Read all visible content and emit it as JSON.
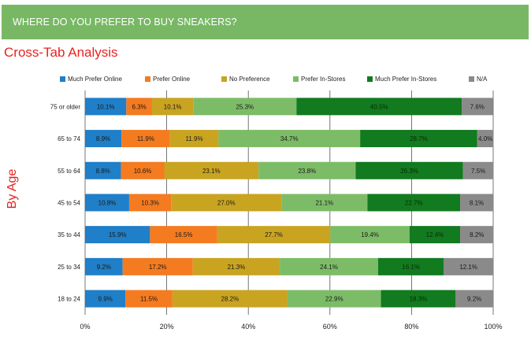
{
  "header": {
    "title": "WHERE DO YOU PREFER TO BUY SNEAKERS?"
  },
  "subtitle": "Cross-Tab Analysis",
  "axis_side_label": "By Age",
  "chart_data": {
    "type": "bar",
    "orientation": "horizontal",
    "stacked": "percent",
    "categories": [
      "75 or older",
      "65 to 74",
      "55 to 64",
      "45 to 54",
      "35 to 44",
      "25 to 34",
      "18 to 24"
    ],
    "series": [
      {
        "name": "Much Prefer Online",
        "color": "#1f7fc8",
        "values": [
          10.1,
          8.9,
          8.8,
          10.8,
          15.9,
          9.2,
          9.9
        ],
        "labels": [
          "10.1%",
          "8.9%",
          "8.8%",
          "10.8%",
          "15.9%",
          "9.2%",
          "9.9%"
        ]
      },
      {
        "name": "Prefer Online",
        "color": "#f47b20",
        "values": [
          6.3,
          11.9,
          10.6,
          10.3,
          16.5,
          17.2,
          11.5
        ],
        "labels": [
          "6.3%",
          "11.9%",
          "10.6%",
          "10.3%",
          "16.5%",
          "17.2%",
          "11.5%"
        ]
      },
      {
        "name": "No Preference",
        "color": "#c9a421",
        "values": [
          10.1,
          11.9,
          23.1,
          27.0,
          27.7,
          21.3,
          28.2
        ],
        "labels": [
          "10.1%",
          "11.9%",
          "23.1%",
          "27.0%",
          "27.7%",
          "21.3%",
          "28.2%"
        ]
      },
      {
        "name": "Prefer In-Stores",
        "color": "#7dbc67",
        "values": [
          25.3,
          34.7,
          23.8,
          21.1,
          19.4,
          24.1,
          22.9
        ],
        "labels": [
          "25.3%",
          "34.7%",
          "23.8%",
          "21.1%",
          "19.4%",
          "24.1%",
          "22.9%"
        ]
      },
      {
        "name": "Much Prefer In-Stores",
        "color": "#127a1f",
        "values": [
          40.5,
          28.7,
          26.3,
          22.7,
          12.4,
          16.1,
          18.3
        ],
        "labels": [
          "40.5%",
          "28.7%",
          "26.3%",
          "22.7%",
          "12.4%",
          "16.1%",
          "18.3%"
        ]
      },
      {
        "name": "N/A",
        "color": "#8a8a8a",
        "values": [
          7.6,
          4.0,
          7.5,
          8.1,
          8.2,
          12.1,
          9.2
        ],
        "labels": [
          "7.6%",
          "4.0%",
          "7.5%",
          "8.1%",
          "8.2%",
          "12.1%",
          "9.2%"
        ]
      }
    ],
    "x_ticks": [
      "0%",
      "20%",
      "40%",
      "60%",
      "80%",
      "100%"
    ],
    "xlim": [
      0,
      100
    ],
    "grid": true,
    "legend_position": "top"
  }
}
